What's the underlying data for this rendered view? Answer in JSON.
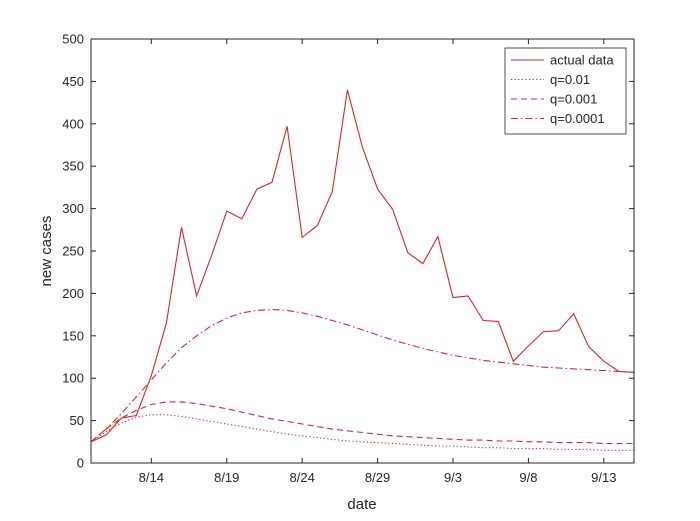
{
  "chart_data": {
    "type": "line",
    "xlabel": "date",
    "ylabel": "new cases",
    "x_start": "8/10",
    "x_end": "9/15",
    "x_ticks": [
      {
        "date": "8/14",
        "label": "8/14"
      },
      {
        "date": "8/19",
        "label": "8/19"
      },
      {
        "date": "8/24",
        "label": "8/24"
      },
      {
        "date": "8/29",
        "label": "8/29"
      },
      {
        "date": "9/3",
        "label": "9/3"
      },
      {
        "date": "9/8",
        "label": "9/8"
      },
      {
        "date": "9/13",
        "label": "9/13"
      }
    ],
    "ylim": [
      0,
      500
    ],
    "y_ticks": [
      0,
      50,
      100,
      150,
      200,
      250,
      300,
      350,
      400,
      450,
      500
    ],
    "grid": false,
    "legend_position": "top-right",
    "color": "#d62728",
    "x": [
      "8/10",
      "8/11",
      "8/12",
      "8/13",
      "8/14",
      "8/15",
      "8/16",
      "8/17",
      "8/18",
      "8/19",
      "8/20",
      "8/21",
      "8/22",
      "8/23",
      "8/24",
      "8/25",
      "8/26",
      "8/27",
      "8/28",
      "8/29",
      "8/30",
      "8/31",
      "9/1",
      "9/2",
      "9/3",
      "9/4",
      "9/5",
      "9/6",
      "9/7",
      "9/8",
      "9/9",
      "9/10",
      "9/11",
      "9/12",
      "9/13",
      "9/14",
      "9/15"
    ],
    "series": [
      {
        "name": "actual data",
        "dash": "solid",
        "values": [
          25,
          33,
          53,
          56,
          103,
          165,
          278,
          197,
          245,
          297,
          288,
          323,
          331,
          397,
          266,
          280,
          320,
          440,
          372,
          323,
          299,
          248,
          235,
          267,
          195,
          197,
          168,
          167,
          120,
          138,
          155,
          156,
          176,
          137,
          120,
          108,
          107
        ]
      },
      {
        "name": "q=0.01",
        "dash": "dotted",
        "values": [
          25,
          37,
          47,
          54,
          57,
          57,
          55,
          52,
          49,
          46,
          43,
          40,
          37,
          34,
          32,
          30,
          28,
          26,
          25,
          24,
          23,
          22,
          21,
          20,
          20,
          19,
          18,
          18,
          17,
          17,
          17,
          16,
          16,
          16,
          15,
          15,
          15
        ]
      },
      {
        "name": "q=0.001",
        "dash": "dashed",
        "values": [
          25,
          40,
          53,
          62,
          69,
          72,
          72,
          70,
          67,
          64,
          60,
          56,
          52,
          49,
          46,
          43,
          40,
          38,
          36,
          34,
          32,
          31,
          30,
          29,
          28,
          27,
          27,
          26,
          26,
          25,
          25,
          24,
          24,
          24,
          23,
          23,
          23
        ]
      },
      {
        "name": "q=0.0001",
        "dash": "dashdot",
        "values": [
          25,
          40,
          58,
          78,
          98,
          118,
          136,
          150,
          162,
          171,
          177,
          180,
          181,
          180,
          177,
          173,
          168,
          163,
          157,
          151,
          145,
          140,
          135,
          131,
          127,
          124,
          121,
          119,
          117,
          115,
          113,
          112,
          111,
          110,
          109,
          108,
          107
        ]
      }
    ]
  }
}
